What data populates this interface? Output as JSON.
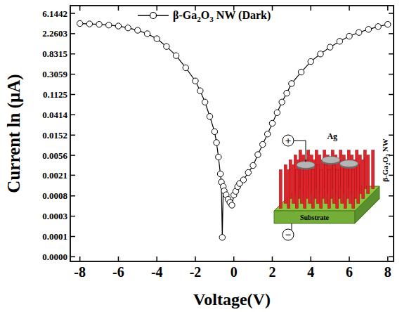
{
  "chart_data": {
    "type": "line",
    "xlabel": "Voltage(V)",
    "ylabel": "Current ln (μA)",
    "x": [
      -8,
      -7.5,
      -7,
      -6.5,
      -6,
      -5.5,
      -5,
      -4.5,
      -4,
      -3.5,
      -3,
      -2.5,
      -2,
      -1.75,
      -1.5,
      -1.25,
      -1,
      -0.9,
      -0.8,
      -0.7,
      -0.65,
      -0.6,
      -0.55,
      -0.5,
      -0.4,
      -0.3,
      -0.2,
      -0.1,
      0,
      0.1,
      0.2,
      0.3,
      0.5,
      0.75,
      1,
      1.25,
      1.5,
      1.75,
      2,
      2.25,
      2.5,
      2.75,
      3,
      3.5,
      4,
      4.5,
      5,
      5.5,
      6,
      6.5,
      7,
      7.5,
      8
    ],
    "series": [
      {
        "name": "β-Ga2O3 NW (Dark)",
        "color": "#000000",
        "marker": "circle",
        "line_style": "solid",
        "values": [
          3.73,
          3.65,
          3.57,
          3.45,
          3.29,
          3.0,
          2.67,
          2.25,
          1.76,
          1.2,
          0.765,
          0.42,
          0.219,
          0.135,
          0.0774,
          0.038,
          0.018,
          0.0105,
          0.00516,
          0.00224,
          0.0015,
          9.8e-05,
          0.0012,
          0.00097,
          0.0008,
          0.00064,
          0.00055,
          0.00048,
          0.00079,
          0.00095,
          0.0012,
          0.0014,
          0.00167,
          0.0024,
          0.0034,
          0.0058,
          0.0096,
          0.016,
          0.0272,
          0.046,
          0.0774,
          0.12,
          0.193,
          0.34,
          0.571,
          0.83,
          1.16,
          1.55,
          1.99,
          2.4,
          2.79,
          3.2,
          3.57
        ]
      }
    ],
    "xlim": [
      -8.5,
      8.3
    ],
    "ylim": [
      3e-05,
      9
    ],
    "xticks": [
      -8,
      -6,
      -4,
      -2,
      0,
      2,
      4,
      6,
      8
    ],
    "yticks": [
      6.1442,
      2.2603,
      0.8315,
      0.3059,
      0.1125,
      0.0414,
      0.0152,
      0.0056,
      0.0021,
      {
        "value": 0.0007583,
        "label": "0.0008"
      },
      {
        "value": 0.000279,
        "label": "0.0003"
      },
      {
        "value": 0.0001026,
        "label": "0.0001"
      },
      {
        "value": 3.775e-05,
        "label": "0.0000"
      }
    ],
    "log": "y",
    "grid": false,
    "legend": "top",
    "annotations": [
      "+",
      "−",
      "Ag",
      "β-Ga2O3 NW",
      "Substrate"
    ]
  }
}
